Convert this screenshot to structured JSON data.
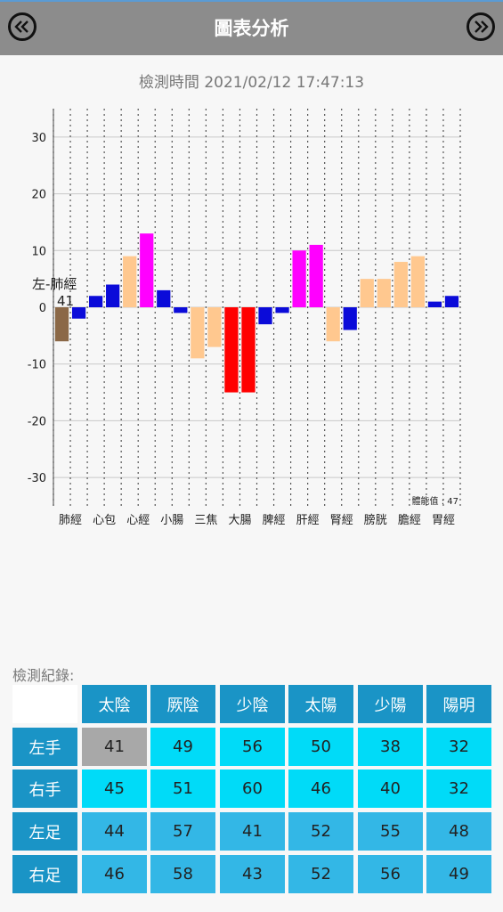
{
  "header": {
    "title": "圖表分析"
  },
  "timestamp": "檢測時間 2021/02/12 17:47:13",
  "chart_data": {
    "type": "bar",
    "categories": [
      "肺經",
      "心包",
      "心經",
      "小腸",
      "三焦",
      "大腸",
      "脾經",
      "肝經",
      "腎經",
      "膀胱",
      "膽經",
      "胃經"
    ],
    "series": [
      {
        "values": [
          -6,
          2,
          9,
          3,
          -9,
          -15,
          -3,
          10,
          -6,
          5,
          8,
          1
        ]
      },
      {
        "values": [
          -2,
          4,
          13,
          -1,
          -7,
          -15,
          -1,
          11,
          -4,
          5,
          9,
          2
        ]
      }
    ],
    "colors": [
      [
        "#8b6847",
        "#0b0bd9"
      ],
      [
        "#0b0bd9",
        "#0b0bd9"
      ],
      [
        "#ffc88f",
        "#ff00ff"
      ],
      [
        "#0b0bd9",
        "#0b0bd9"
      ],
      [
        "#ffc88f",
        "#ffc88f"
      ],
      [
        "#ff0000",
        "#ff0000"
      ],
      [
        "#0b0bd9",
        "#0b0bd9"
      ],
      [
        "#ff00ff",
        "#ff00ff"
      ],
      [
        "#ffc88f",
        "#0b0bd9"
      ],
      [
        "#ffc88f",
        "#ffc88f"
      ],
      [
        "#ffc88f",
        "#ffc88f"
      ],
      [
        "#0b0bd9",
        "#0b0bd9"
      ]
    ],
    "ylim": [
      -35,
      35
    ],
    "yticks": [
      30,
      20,
      10,
      0,
      -10,
      -20,
      -30
    ],
    "annotation": {
      "label": "左-肺經",
      "value": "41"
    },
    "footnote": "體能值 : 47",
    "grid": true
  },
  "records": {
    "label": "檢測紀錄:",
    "columns": [
      "太陰",
      "厥陰",
      "少陰",
      "太陽",
      "少陽",
      "陽明"
    ],
    "rows": [
      {
        "label": "左手",
        "values": [
          "41",
          "49",
          "56",
          "50",
          "38",
          "32"
        ]
      },
      {
        "label": "右手",
        "values": [
          "45",
          "51",
          "60",
          "46",
          "40",
          "32"
        ]
      },
      {
        "label": "左足",
        "values": [
          "44",
          "57",
          "41",
          "52",
          "55",
          "48"
        ]
      },
      {
        "label": "右足",
        "values": [
          "46",
          "58",
          "43",
          "52",
          "56",
          "49"
        ]
      }
    ]
  },
  "theme": {
    "header_bg": "#8c8c8c",
    "table_header": "#1a94c6",
    "hand_cell": "#00dbf8",
    "foot_cell": "#33b7e6",
    "selected_cell": "#a8a8a8"
  }
}
